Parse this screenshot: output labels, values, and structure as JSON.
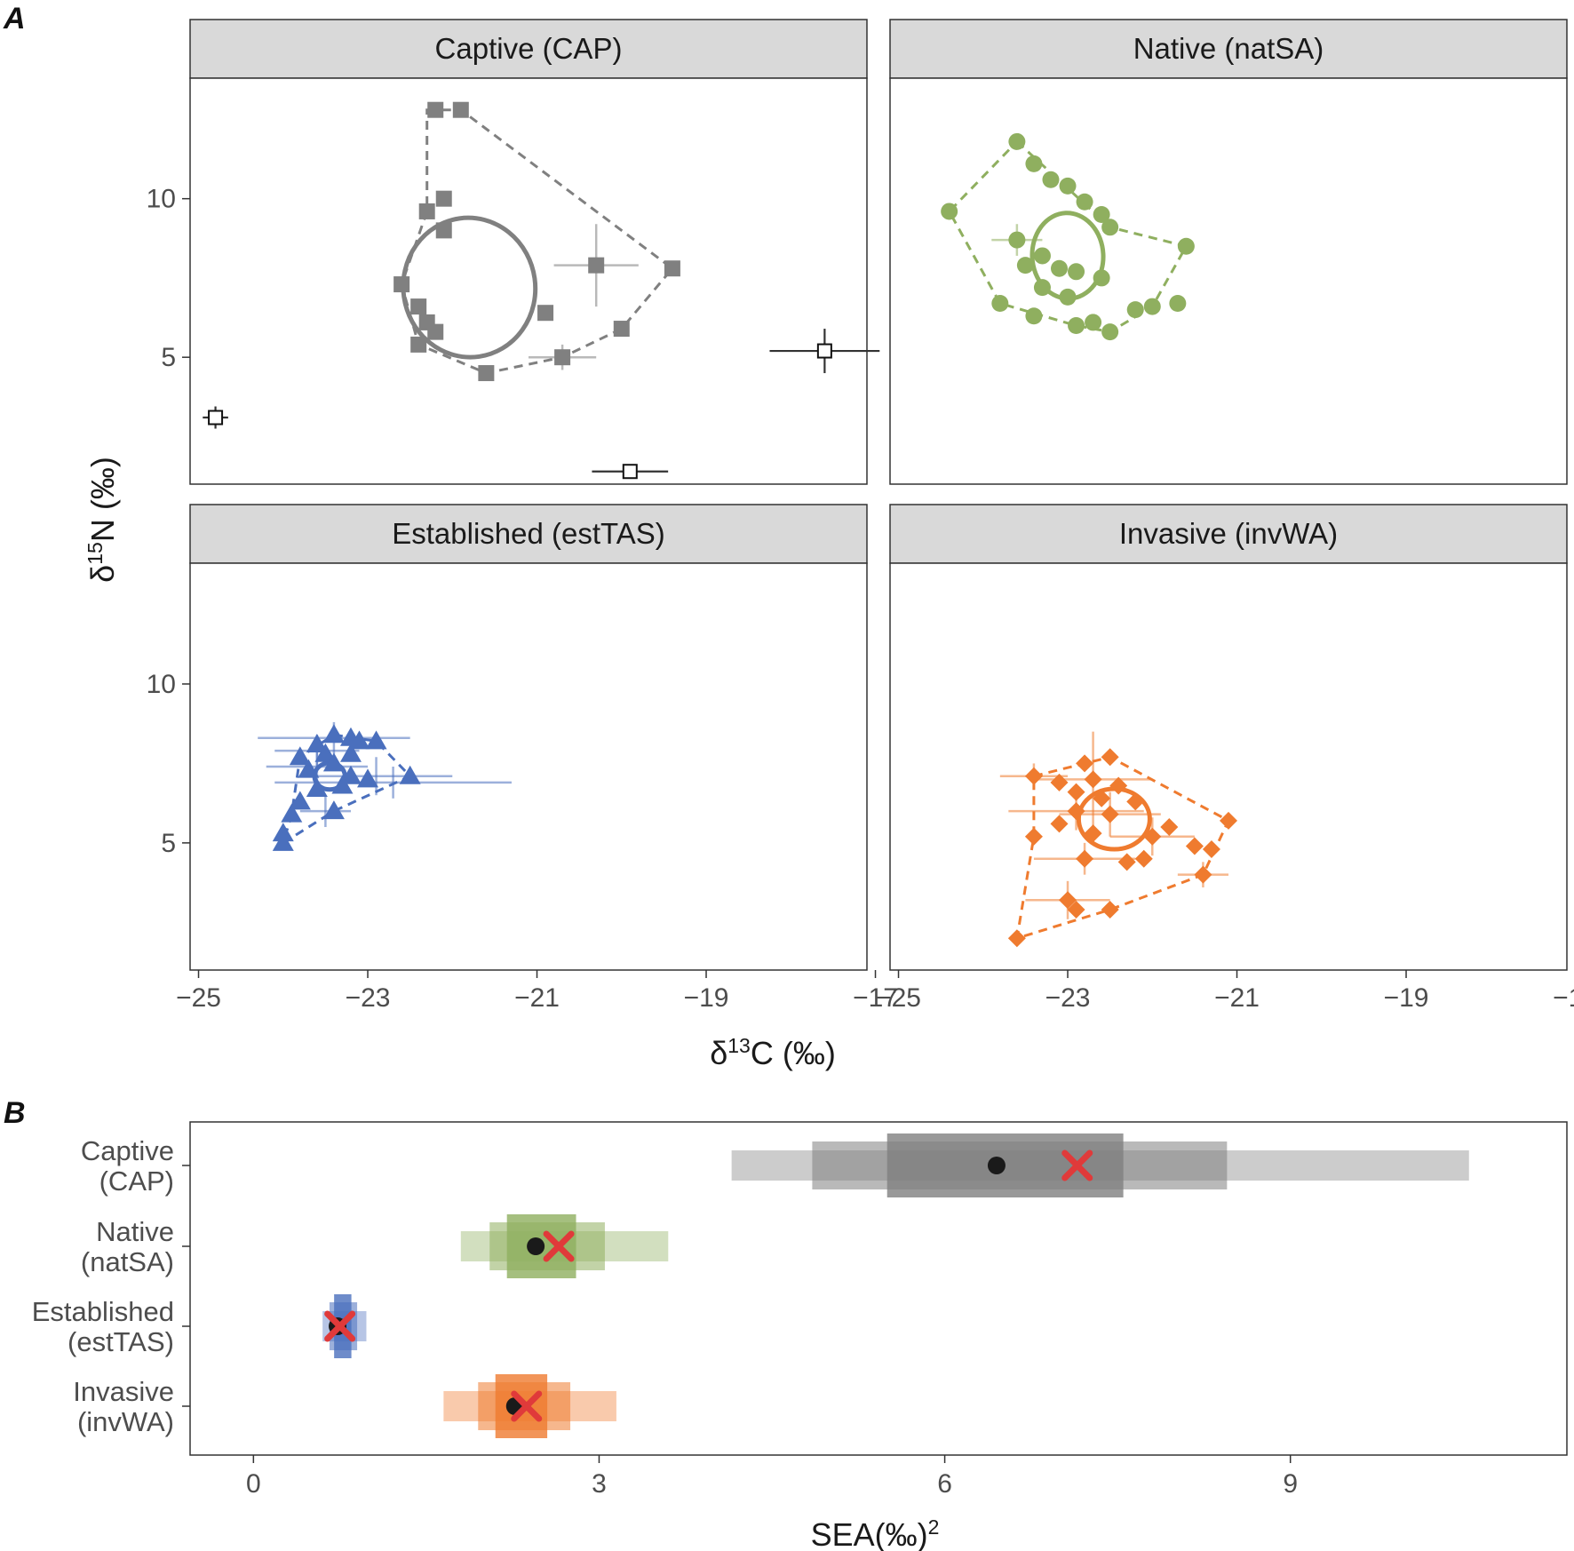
{
  "figure": {
    "panel_a_letter": "A",
    "panel_b_letter": "B"
  },
  "chart_data": [
    {
      "type": "scatter",
      "title": "",
      "xlabel_main": "δ",
      "xlabel_sup": "13",
      "xlabel_rest": "C (‰)",
      "ylabel_main": "δ",
      "ylabel_sup": "15",
      "ylabel_rest": "N (‰)",
      "xlim": [
        -25.1,
        -17.1
      ],
      "ylim": [
        1.0,
        13.8
      ],
      "x_ticks": [
        -25,
        -23,
        -21,
        -19,
        -17
      ],
      "x_tick_labels": [
        "−25",
        "−23",
        "−21",
        "−19",
        "−17"
      ],
      "y_ticks": [
        5,
        10
      ],
      "y_tick_labels": [
        "5",
        "10"
      ],
      "panels": [
        {
          "label": "Captive (CAP)",
          "color": "#808080",
          "shape": "square",
          "points": [
            [
              -22.2,
              12.8
            ],
            [
              -21.9,
              12.8
            ],
            [
              -22.3,
              9.6
            ],
            [
              -22.1,
              10.0
            ],
            [
              -22.1,
              9.0
            ],
            [
              -22.6,
              7.3
            ],
            [
              -22.4,
              6.6
            ],
            [
              -22.3,
              6.1
            ],
            [
              -22.2,
              5.8
            ],
            [
              -22.4,
              5.4
            ],
            [
              -21.6,
              4.5
            ],
            [
              -20.9,
              6.4
            ],
            [
              -20.7,
              5.0
            ],
            [
              -20.3,
              7.9
            ],
            [
              -20.0,
              5.9
            ],
            [
              -19.4,
              7.8
            ]
          ],
          "errorbars": [
            {
              "x": -20.3,
              "y": 7.9,
              "xerr": 0.5,
              "yerr": 1.3
            },
            {
              "x": -20.7,
              "y": 5.0,
              "xerr": 0.4,
              "yerr": 0.4
            }
          ],
          "hull": [
            [
              -22.3,
              12.8
            ],
            [
              -21.9,
              12.8
            ],
            [
              -19.4,
              7.8
            ],
            [
              -20.0,
              5.9
            ],
            [
              -20.7,
              5.0
            ],
            [
              -21.6,
              4.5
            ],
            [
              -22.4,
              5.4
            ],
            [
              -22.6,
              7.3
            ],
            [
              -22.3,
              9.6
            ]
          ],
          "ellipse": {
            "cx": -21.8,
            "cy": 7.2,
            "rx": 0.78,
            "ry": 2.2,
            "angle": -8
          },
          "sources": [
            {
              "x": -24.8,
              "y": 3.1,
              "xerr": 0.15,
              "yerr": 0.35
            },
            {
              "x": -17.6,
              "y": 5.2,
              "xerr": 0.65,
              "yerr": 0.7
            },
            {
              "x": -19.9,
              "y": 1.4,
              "xerr": 0.45,
              "yerr": 0.15
            }
          ]
        },
        {
          "label": "Native (natSA)",
          "color": "#8faf5f",
          "shape": "circle",
          "points": [
            [
              -23.6,
              11.8
            ],
            [
              -23.4,
              11.1
            ],
            [
              -23.2,
              10.6
            ],
            [
              -23.0,
              10.4
            ],
            [
              -22.8,
              9.9
            ],
            [
              -22.6,
              9.5
            ],
            [
              -22.5,
              9.1
            ],
            [
              -24.4,
              9.6
            ],
            [
              -23.6,
              8.7
            ],
            [
              -23.3,
              8.2
            ],
            [
              -23.5,
              7.9
            ],
            [
              -23.1,
              7.8
            ],
            [
              -22.9,
              7.7
            ],
            [
              -22.6,
              7.5
            ],
            [
              -23.3,
              7.2
            ],
            [
              -23.0,
              6.9
            ],
            [
              -23.8,
              6.7
            ],
            [
              -23.4,
              6.3
            ],
            [
              -22.7,
              6.1
            ],
            [
              -22.9,
              6.0
            ],
            [
              -22.5,
              5.8
            ],
            [
              -22.2,
              6.5
            ],
            [
              -22.0,
              6.6
            ],
            [
              -21.7,
              6.7
            ],
            [
              -21.6,
              8.5
            ]
          ],
          "hull": [
            [
              -23.6,
              11.8
            ],
            [
              -22.5,
              9.1
            ],
            [
              -21.6,
              8.5
            ],
            [
              -22.0,
              6.6
            ],
            [
              -22.5,
              5.8
            ],
            [
              -22.9,
              6.0
            ],
            [
              -23.8,
              6.7
            ],
            [
              -24.4,
              9.6
            ]
          ],
          "ellipse": {
            "cx": -23.0,
            "cy": 8.2,
            "rx": 0.42,
            "ry": 1.35,
            "angle": -3
          },
          "errorbars": [
            {
              "x": -23.6,
              "y": 8.7,
              "xerr": 0.3,
              "yerr": 0.5
            }
          ]
        },
        {
          "label": "Established (estTAS)",
          "color": "#4a6fbd",
          "shape": "triangle",
          "points": [
            [
              -23.4,
              8.4
            ],
            [
              -23.2,
              8.3
            ],
            [
              -23.1,
              8.2
            ],
            [
              -22.9,
              8.2
            ],
            [
              -23.6,
              8.1
            ],
            [
              -23.5,
              7.8
            ],
            [
              -23.4,
              7.5
            ],
            [
              -23.7,
              7.3
            ],
            [
              -23.2,
              7.1
            ],
            [
              -23.0,
              7.0
            ],
            [
              -23.3,
              6.8
            ],
            [
              -23.6,
              6.7
            ],
            [
              -22.5,
              7.1
            ],
            [
              -23.8,
              6.3
            ],
            [
              -23.4,
              6.0
            ],
            [
              -23.9,
              5.9
            ],
            [
              -24.0,
              5.3
            ],
            [
              -24.0,
              5.0
            ],
            [
              -23.2,
              7.8
            ],
            [
              -23.8,
              7.7
            ]
          ],
          "errorbars": [
            {
              "x": -23.6,
              "y": 7.9,
              "xerr": 0.5,
              "yerr": 0.5
            },
            {
              "x": -22.9,
              "y": 7.1,
              "xerr": 0.9,
              "yerr": 0.6
            },
            {
              "x": -22.7,
              "y": 6.9,
              "xerr": 1.4,
              "yerr": 0.5
            },
            {
              "x": -23.4,
              "y": 8.3,
              "xerr": 0.9,
              "yerr": 0.5
            },
            {
              "x": -23.6,
              "y": 7.4,
              "xerr": 0.6,
              "yerr": 0.7
            },
            {
              "x": -23.5,
              "y": 6.0,
              "xerr": 0.3,
              "yerr": 0.5
            }
          ],
          "hull": [
            [
              -23.4,
              8.4
            ],
            [
              -22.9,
              8.2
            ],
            [
              -22.5,
              7.1
            ],
            [
              -23.4,
              6.0
            ],
            [
              -24.0,
              5.0
            ],
            [
              -23.9,
              5.9
            ],
            [
              -23.8,
              7.7
            ]
          ],
          "ellipse": {
            "cx": -23.45,
            "cy": 7.1,
            "rx": 0.18,
            "ry": 0.42,
            "angle": 0
          }
        },
        {
          "label": "Invasive (invWA)",
          "color": "#ef7b2f",
          "shape": "diamond",
          "points": [
            [
              -23.4,
              7.1
            ],
            [
              -23.1,
              6.9
            ],
            [
              -22.8,
              7.5
            ],
            [
              -22.5,
              7.7
            ],
            [
              -22.7,
              7.0
            ],
            [
              -22.9,
              6.6
            ],
            [
              -22.6,
              6.4
            ],
            [
              -22.2,
              6.3
            ],
            [
              -22.9,
              6.0
            ],
            [
              -22.5,
              5.9
            ],
            [
              -23.1,
              5.6
            ],
            [
              -23.4,
              5.2
            ],
            [
              -22.7,
              5.3
            ],
            [
              -22.0,
              5.2
            ],
            [
              -21.8,
              5.5
            ],
            [
              -21.1,
              5.7
            ],
            [
              -21.5,
              4.9
            ],
            [
              -21.3,
              4.8
            ],
            [
              -22.8,
              4.5
            ],
            [
              -22.3,
              4.4
            ],
            [
              -22.1,
              4.5
            ],
            [
              -21.4,
              4.0
            ],
            [
              -23.0,
              3.2
            ],
            [
              -22.9,
              2.9
            ],
            [
              -22.5,
              2.9
            ],
            [
              -23.6,
              2.0
            ],
            [
              -22.4,
              6.8
            ]
          ],
          "errorbars": [
            {
              "x": -22.7,
              "y": 7.0,
              "xerr": 0.7,
              "yerr": 1.5
            },
            {
              "x": -22.9,
              "y": 6.0,
              "xerr": 0.8,
              "yerr": 0.6
            },
            {
              "x": -22.5,
              "y": 5.9,
              "xerr": 0.6,
              "yerr": 0.7
            },
            {
              "x": -22.0,
              "y": 5.2,
              "xerr": 0.5,
              "yerr": 0.6
            },
            {
              "x": -22.8,
              "y": 4.5,
              "xerr": 0.6,
              "yerr": 0.5
            },
            {
              "x": -23.0,
              "y": 3.2,
              "xerr": 0.5,
              "yerr": 0.6
            },
            {
              "x": -21.4,
              "y": 4.0,
              "xerr": 0.3,
              "yerr": 0.4
            },
            {
              "x": -23.4,
              "y": 7.1,
              "xerr": 0.4,
              "yerr": 0.4
            }
          ],
          "hull": [
            [
              -23.4,
              7.1
            ],
            [
              -22.5,
              7.7
            ],
            [
              -21.1,
              5.7
            ],
            [
              -21.4,
              4.0
            ],
            [
              -22.5,
              2.9
            ],
            [
              -23.6,
              2.0
            ],
            [
              -23.4,
              5.2
            ]
          ],
          "ellipse": {
            "cx": -22.45,
            "cy": 5.75,
            "rx": 0.42,
            "ry": 0.95,
            "angle": 0
          }
        }
      ]
    },
    {
      "type": "interval",
      "xlabel_main": "SEA(‰)",
      "xlabel_sup": "2",
      "xlim": [
        -0.55,
        11.4
      ],
      "x_ticks": [
        0,
        3,
        6,
        9
      ],
      "x_tick_labels": [
        "0",
        "3",
        "6",
        "9"
      ],
      "categories": [
        {
          "line1": "Captive",
          "line2": "(CAP)",
          "color": "#808080",
          "ci95": [
            4.15,
            10.55
          ],
          "ci75": [
            4.85,
            8.45
          ],
          "ci50": [
            5.5,
            7.55
          ],
          "mode": 6.45,
          "ml_estimate": 7.15
        },
        {
          "line1": "Native",
          "line2": "(natSA)",
          "color": "#8faf5f",
          "ci95": [
            1.8,
            3.6
          ],
          "ci75": [
            2.05,
            3.05
          ],
          "ci50": [
            2.2,
            2.8
          ],
          "mode": 2.45,
          "ml_estimate": 2.65
        },
        {
          "line1": "Established",
          "line2": "(estTAS)",
          "color": "#4a6fbd",
          "ci95": [
            0.6,
            0.98
          ],
          "ci75": [
            0.66,
            0.9
          ],
          "ci50": [
            0.7,
            0.85
          ],
          "mode": 0.73,
          "ml_estimate": 0.75
        },
        {
          "line1": "Invasive",
          "line2": "(invWA)",
          "color": "#ef7b2f",
          "ci95": [
            1.65,
            3.15
          ],
          "ci75": [
            1.95,
            2.75
          ],
          "ci50": [
            2.1,
            2.55
          ],
          "mode": 2.27,
          "ml_estimate": 2.37
        }
      ]
    }
  ]
}
